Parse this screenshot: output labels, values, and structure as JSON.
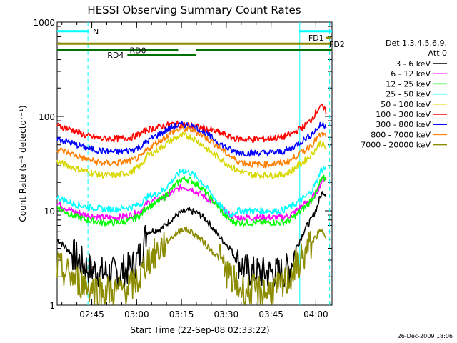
{
  "chart_data": {
    "type": "line",
    "title": "HESSI Observing Summary Count Rates",
    "xlabel": "Start Time (22-Sep-08 02:33:22)",
    "ylabel": "Count Rate (s⁻¹ detector⁻¹)",
    "yscale": "log",
    "xlim": [
      0,
      92
    ],
    "ylim": [
      1,
      1000
    ],
    "x_unit": "minutes after 02:33:22",
    "x_ticks": [
      {
        "t": 11.6,
        "label": "02:45"
      },
      {
        "t": 26.6,
        "label": "03:00"
      },
      {
        "t": 41.6,
        "label": "03:15"
      },
      {
        "t": 56.6,
        "label": "03:30"
      },
      {
        "t": 71.6,
        "label": "03:45"
      },
      {
        "t": 86.6,
        "label": "04:00"
      }
    ],
    "y_ticks": [
      {
        "v": 1,
        "label": "1"
      },
      {
        "v": 10,
        "label": "10"
      },
      {
        "v": 100,
        "label": "100"
      },
      {
        "v": 1000,
        "label": "1000"
      }
    ],
    "legend": {
      "header_line1": "Det 1,3,4,5,6,9,",
      "header_line2": "Att 0",
      "placement": "right"
    },
    "series": [
      {
        "name": "3 - 6 keV",
        "color": "#000000",
        "t": [
          0,
          5,
          10,
          15,
          20,
          25,
          28,
          30,
          35,
          38,
          41,
          44,
          47,
          50,
          53,
          55,
          58,
          60,
          63,
          66,
          70,
          75,
          78,
          80,
          83,
          85,
          87,
          88,
          89,
          90
        ],
        "y": [
          5,
          3.5,
          2.5,
          2.2,
          2.2,
          2.5,
          3.5,
          6,
          6.5,
          8,
          9.5,
          10,
          9.5,
          8,
          6,
          5,
          4,
          3,
          2.4,
          2.2,
          2.2,
          2.2,
          2.5,
          4,
          6.5,
          8,
          11,
          14,
          16,
          15
        ]
      },
      {
        "name": "6 - 12 keV",
        "color": "#ff00ff",
        "t": [
          0,
          5,
          10,
          15,
          20,
          25,
          28,
          30,
          33,
          36,
          39,
          42,
          45,
          48,
          51,
          54,
          56,
          58,
          60,
          63,
          66,
          70,
          75,
          78,
          80,
          83,
          85,
          87,
          88,
          89,
          90
        ],
        "y": [
          12,
          10,
          9,
          8.5,
          8.5,
          9,
          10,
          12,
          13,
          14,
          16,
          18,
          17,
          15,
          13,
          11,
          10,
          9,
          8.5,
          8.5,
          8.5,
          8.5,
          8.5,
          9,
          10,
          12,
          13,
          16,
          19,
          22,
          22
        ]
      },
      {
        "name": "12 - 25 keV",
        "color": "#00ff00",
        "t": [
          0,
          5,
          10,
          15,
          20,
          25,
          28,
          30,
          33,
          36,
          39,
          42,
          45,
          48,
          51,
          54,
          56,
          58,
          60,
          63,
          66,
          70,
          75,
          78,
          80,
          83,
          85,
          87,
          88,
          89,
          90
        ],
        "y": [
          11,
          9,
          8,
          7.5,
          7.5,
          8,
          9,
          11,
          12,
          14,
          18,
          22,
          21,
          18,
          14,
          11,
          9,
          8,
          7.5,
          7.5,
          7.5,
          7.5,
          7.5,
          8,
          9,
          11,
          13,
          16,
          20,
          22,
          22
        ]
      },
      {
        "name": "25 - 50 keV",
        "color": "#00ffff",
        "t": [
          0,
          5,
          10,
          15,
          20,
          25,
          28,
          30,
          33,
          36,
          39,
          42,
          45,
          48,
          51,
          54,
          56,
          58,
          60,
          63,
          66,
          70,
          75,
          78,
          80,
          83,
          85,
          87,
          88,
          89,
          90
        ],
        "y": [
          14,
          12,
          11,
          10.5,
          10.5,
          11,
          12,
          14,
          15,
          17,
          22,
          27,
          25,
          21,
          16,
          12,
          10,
          9,
          10,
          10,
          10,
          10,
          10,
          11,
          12,
          14,
          16,
          21,
          26,
          28,
          28
        ]
      },
      {
        "name": "50 - 100 keV",
        "color": "#d8d800",
        "t": [
          0,
          5,
          10,
          15,
          20,
          25,
          28,
          30,
          33,
          36,
          39,
          42,
          45,
          48,
          51,
          54,
          56,
          58,
          60,
          63,
          66,
          70,
          75,
          78,
          80,
          83,
          85,
          87,
          88,
          89,
          90
        ],
        "y": [
          33,
          29,
          26,
          24,
          24,
          26,
          30,
          38,
          43,
          50,
          58,
          63,
          60,
          52,
          43,
          37,
          33,
          30,
          27,
          25,
          24,
          24,
          24,
          26,
          29,
          34,
          39,
          47,
          53,
          50,
          45
        ]
      },
      {
        "name": "100 - 300 keV",
        "color": "#ff0000",
        "t": [
          0,
          5,
          10,
          15,
          20,
          25,
          28,
          30,
          33,
          36,
          39,
          42,
          45,
          48,
          51,
          54,
          56,
          58,
          60,
          63,
          66,
          70,
          75,
          78,
          80,
          83,
          85,
          87,
          88,
          89,
          90
        ],
        "y": [
          80,
          72,
          62,
          58,
          58,
          60,
          66,
          72,
          76,
          80,
          83,
          82,
          80,
          76,
          72,
          68,
          64,
          60,
          58,
          57,
          57,
          58,
          60,
          64,
          70,
          80,
          92,
          115,
          130,
          122,
          112
        ]
      },
      {
        "name": "300 - 800 keV",
        "color": "#0000ff",
        "t": [
          0,
          5,
          10,
          15,
          20,
          25,
          28,
          30,
          33,
          36,
          39,
          42,
          45,
          48,
          51,
          54,
          56,
          58,
          60,
          63,
          66,
          70,
          75,
          78,
          80,
          83,
          85,
          87,
          88,
          89,
          90
        ],
        "y": [
          58,
          52,
          46,
          43,
          42,
          44,
          48,
          54,
          62,
          70,
          78,
          82,
          80,
          72,
          62,
          53,
          48,
          44,
          42,
          41,
          41,
          41,
          42,
          45,
          50,
          58,
          64,
          74,
          80,
          82,
          80
        ]
      },
      {
        "name": "800 - 7000 keV",
        "color": "#ff8000",
        "t": [
          0,
          5,
          10,
          15,
          20,
          25,
          28,
          30,
          33,
          36,
          39,
          42,
          45,
          48,
          51,
          54,
          56,
          58,
          60,
          63,
          66,
          70,
          75,
          78,
          80,
          83,
          85,
          87,
          88,
          89,
          90
        ],
        "y": [
          45,
          40,
          35,
          32,
          32,
          34,
          37,
          44,
          52,
          60,
          70,
          74,
          72,
          65,
          56,
          48,
          42,
          38,
          34,
          32,
          31,
          31,
          32,
          34,
          38,
          44,
          50,
          58,
          63,
          64,
          62
        ]
      },
      {
        "name": "7000 - 20000 keV",
        "color": "#8c8c00",
        "t": [
          0,
          5,
          10,
          15,
          20,
          25,
          28,
          30,
          33,
          36,
          39,
          42,
          45,
          48,
          51,
          54,
          56,
          58,
          60,
          63,
          66,
          70,
          75,
          78,
          80,
          83,
          85,
          87,
          88,
          89,
          90
        ],
        "y": [
          2.5,
          2,
          1.6,
          1.4,
          1.4,
          1.6,
          2,
          3,
          3.5,
          4.5,
          5.5,
          6.5,
          6,
          5,
          4,
          3.2,
          2.5,
          2,
          1.6,
          1.4,
          1.4,
          1.4,
          1.5,
          2,
          2.6,
          3.5,
          4.5,
          5.5,
          6,
          6,
          5.5
        ]
      }
    ],
    "flags": [
      {
        "label": "N",
        "color": "#00ffff",
        "segments": [
          [
            0,
            10.5
          ],
          [
            81,
            92
          ]
        ],
        "level": 800
      },
      {
        "label": "FD1",
        "color": "#8c8c00",
        "segments": [
          [
            90,
            91.5
          ]
        ],
        "level": 680
      },
      {
        "label": "FD2",
        "color": "#8c8c00",
        "segments": [
          [
            0,
            92
          ]
        ],
        "level": 590
      },
      {
        "label": "RD0",
        "color": "#007000",
        "segments": [
          [
            0,
            40.5
          ],
          [
            46.5,
            92
          ]
        ],
        "level": 510
      },
      {
        "label": "RD4",
        "color": "#007000",
        "segments": [
          [
            23.5,
            46.5
          ]
        ],
        "level": 450
      }
    ],
    "vlines": [
      {
        "t": 10.3,
        "color": "#00ffff",
        "style": "dashed"
      },
      {
        "t": 81.2,
        "color": "#00ffff",
        "style": "solid"
      },
      {
        "t": 91.2,
        "color": "#00ffff",
        "style": "dashed"
      }
    ],
    "footer_date": "26-Dec-2009 18:06"
  }
}
